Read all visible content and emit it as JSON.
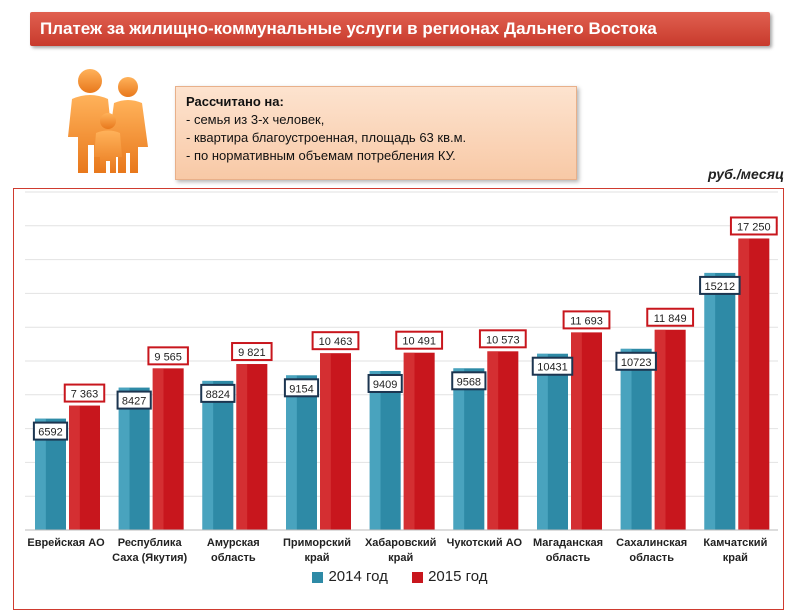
{
  "title": "Платеж за жилищно-коммунальные услуги в регионах Дальнего Востока",
  "note": {
    "heading": "Рассчитано на:",
    "lines": [
      "- семья из 3-х человек,",
      "- квартира благоустроенная,  площадь 63 кв.м.",
      "- по нормативным объемам потребления  КУ."
    ]
  },
  "icon": "family-icon",
  "colors": {
    "series2014": "#2e8aa6",
    "series2015": "#c8161d",
    "title": "#d24a3c"
  },
  "chart_data": {
    "type": "bar",
    "unit": "руб./месяц",
    "categories": [
      [
        "Еврейская АО"
      ],
      [
        "Республика",
        "Саха (Якутия)"
      ],
      [
        "Амурская",
        "область"
      ],
      [
        "Приморский",
        "край"
      ],
      [
        "Хабаровский",
        "край"
      ],
      [
        "Чукотский АО"
      ],
      [
        "Магаданская",
        "область"
      ],
      [
        "Сахалинская",
        "область"
      ],
      [
        "Камчатский",
        "край"
      ]
    ],
    "series": [
      {
        "name": "2014 год",
        "values": [
          6592,
          8427,
          8824,
          9154,
          9409,
          9568,
          10431,
          10723,
          15212
        ],
        "labels": [
          "6592",
          "8427",
          "8824",
          "9154",
          "9409",
          "9568",
          "10431",
          "10723",
          "15212"
        ]
      },
      {
        "name": "2015 год",
        "values": [
          7363,
          9565,
          9821,
          10463,
          10491,
          10573,
          11693,
          11849,
          17250
        ],
        "labels": [
          "7 363",
          "9 565",
          "9 821",
          "10 463",
          "10 491",
          "10 573",
          "11 693",
          "11 849",
          "17 250"
        ]
      }
    ],
    "ylim": [
      0,
      20000
    ],
    "grid": true,
    "legend": "bottom"
  }
}
